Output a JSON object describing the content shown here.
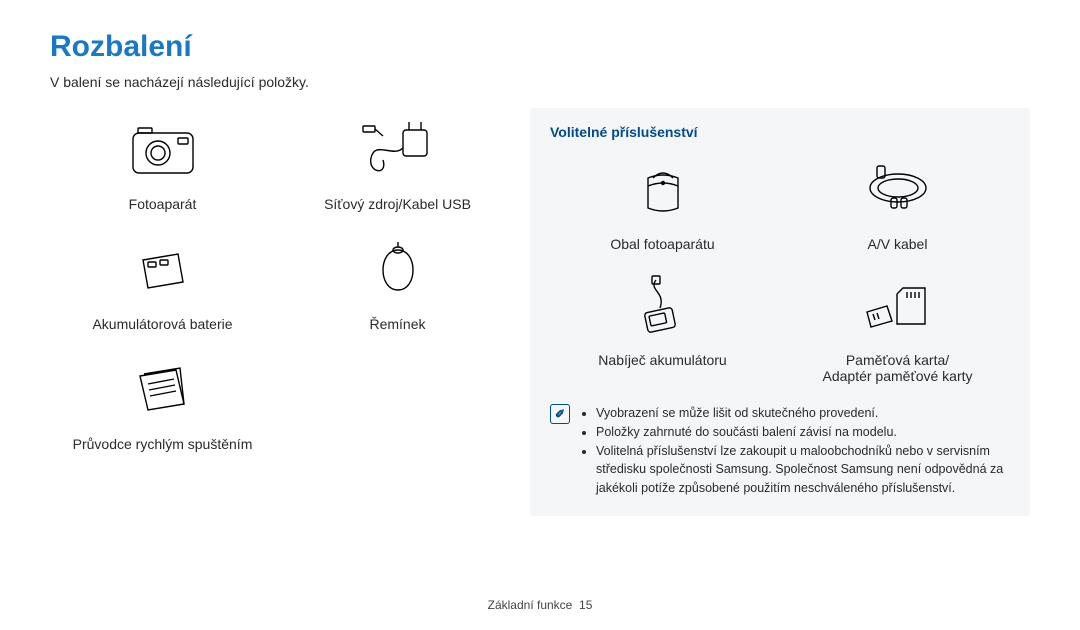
{
  "title": "Rozbalení",
  "title_color": "#1a78c8",
  "subtitle": "V balení se nacházejí následující položky.",
  "left_items": [
    {
      "label": "Fotoaparát",
      "icon": "camera"
    },
    {
      "label": "Síťový zdroj/Kabel USB",
      "icon": "adapter-usb"
    },
    {
      "label": "Akumulátorová baterie",
      "icon": "battery"
    },
    {
      "label": "Řemínek",
      "icon": "strap"
    },
    {
      "label": "Průvodce rychlým spuštěním",
      "icon": "guide"
    }
  ],
  "right": {
    "heading": "Volitelné příslušenství",
    "heading_color": "#004b8d",
    "items": [
      {
        "label": "Obal fotoaparátu",
        "icon": "case"
      },
      {
        "label": "A/V kabel",
        "icon": "avcable"
      },
      {
        "label": "Nabíječ akumulátoru",
        "icon": "charger"
      },
      {
        "label": "Paměťová karta/\nAdaptér paměťové karty",
        "icon": "sdcard"
      }
    ],
    "note_icon_glyph": "✐",
    "notes": [
      "Vyobrazení se může lišit od skutečného provedení.",
      "Položky zahrnuté do součásti balení závisí na modelu.",
      "Volitelná příslušenství lze zakoupit u maloobchodníků nebo v servisním středisku společnosti Samsung. Společnost Samsung není odpovědná za jakékoli potíže způsobené použitím neschváleného příslušenství."
    ]
  },
  "footer": {
    "text": "Základní funkce",
    "page": "15"
  },
  "palette": {
    "bg_panel": "#f4f6f7",
    "text": "#2a2a2a"
  }
}
